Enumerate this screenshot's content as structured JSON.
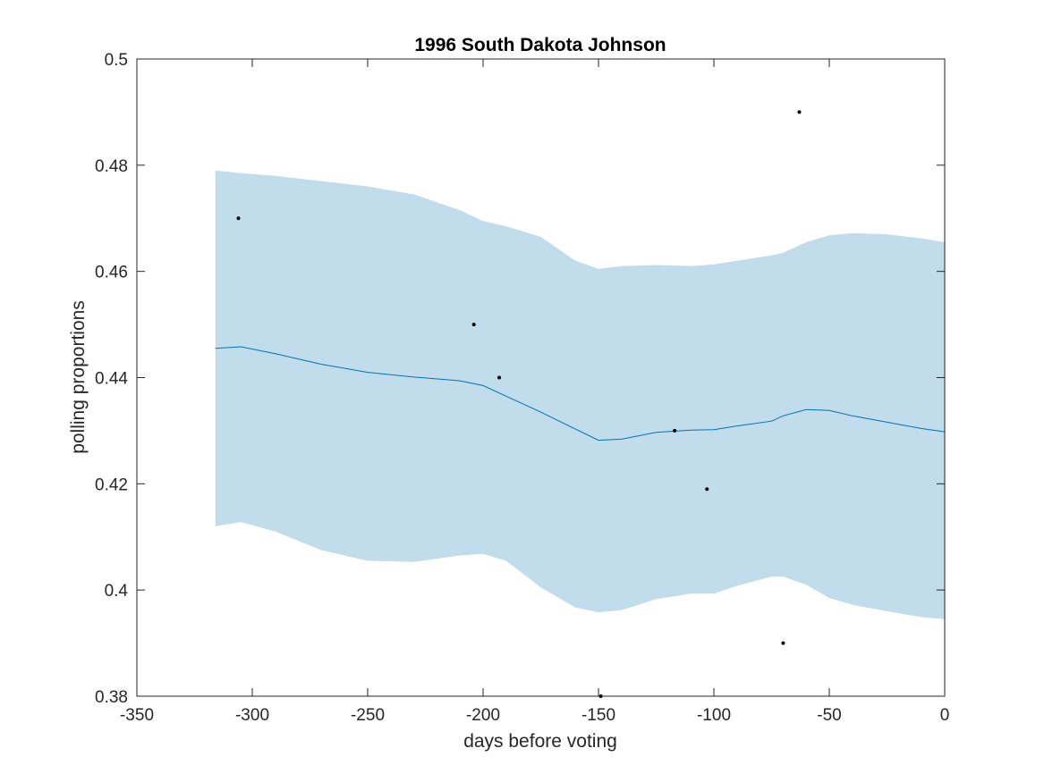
{
  "chart_data": {
    "type": "line",
    "title": "1996 South Dakota Johnson",
    "xlabel": "days before voting",
    "ylabel": "polling proportions",
    "xlim": [
      -350,
      0
    ],
    "ylim": [
      0.38,
      0.5
    ],
    "xticks": [
      -350,
      -300,
      -250,
      -200,
      -150,
      -100,
      -50,
      0
    ],
    "xtick_labels": [
      "-350",
      "-300",
      "-250",
      "-200",
      "-150",
      "-100",
      "-50",
      "0"
    ],
    "yticks": [
      0.38,
      0.4,
      0.42,
      0.44,
      0.46,
      0.48,
      0.5
    ],
    "ytick_labels": [
      "0.38",
      "0.4",
      "0.42",
      "0.44",
      "0.46",
      "0.48",
      "0.5"
    ],
    "grid": false,
    "colors": {
      "band": "#c1dcea",
      "line": "#0072bd",
      "points": "#000000",
      "axes": "#262626"
    },
    "series": [
      {
        "type": "line",
        "x": [
          -316,
          -305,
          -290,
          -270,
          -250,
          -230,
          -210,
          -200,
          -190,
          -175,
          -160,
          -150,
          -140,
          -125,
          -110,
          -100,
          -90,
          -75,
          -70,
          -60,
          -50,
          -40,
          -25,
          -10,
          0
        ],
        "values": [
          0.4455,
          0.4458,
          0.4445,
          0.4425,
          0.441,
          0.4401,
          0.4394,
          0.4385,
          0.4365,
          0.4335,
          0.4303,
          0.4282,
          0.4284,
          0.4297,
          0.4301,
          0.4302,
          0.4309,
          0.4318,
          0.4328,
          0.434,
          0.4338,
          0.4328,
          0.4316,
          0.4304,
          0.4298
        ]
      },
      {
        "type": "band",
        "x": [
          -316,
          -305,
          -290,
          -270,
          -250,
          -230,
          -210,
          -200,
          -190,
          -175,
          -160,
          -150,
          -140,
          -125,
          -110,
          -100,
          -90,
          -75,
          -70,
          -60,
          -50,
          -40,
          -25,
          -10,
          0
        ],
        "upper": [
          0.479,
          0.4785,
          0.478,
          0.477,
          0.476,
          0.4745,
          0.4715,
          0.4695,
          0.4685,
          0.4665,
          0.462,
          0.4605,
          0.461,
          0.4612,
          0.461,
          0.4613,
          0.462,
          0.463,
          0.4635,
          0.4655,
          0.4668,
          0.4672,
          0.467,
          0.4662,
          0.4655
        ],
        "lower": [
          0.412,
          0.4128,
          0.411,
          0.4075,
          0.4055,
          0.4053,
          0.4065,
          0.4068,
          0.4055,
          0.4005,
          0.3967,
          0.3958,
          0.3962,
          0.3983,
          0.3993,
          0.3993,
          0.4008,
          0.4025,
          0.4025,
          0.401,
          0.3985,
          0.3972,
          0.396,
          0.3949,
          0.3945
        ]
      },
      {
        "type": "scatter",
        "x": [
          -306,
          -204,
          -193,
          -149,
          -117,
          -103,
          -70,
          -63
        ],
        "values": [
          0.47,
          0.45,
          0.44,
          0.38,
          0.43,
          0.419,
          0.39,
          0.49
        ]
      }
    ]
  }
}
